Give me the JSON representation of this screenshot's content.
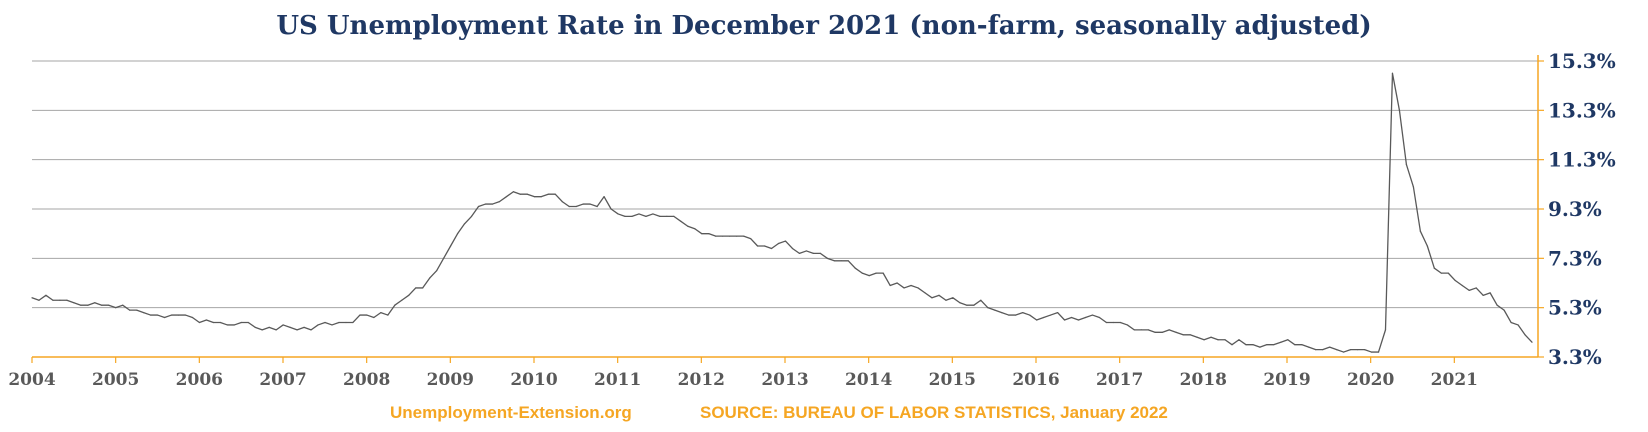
{
  "chart_data": {
    "type": "line",
    "title": "US Unemployment Rate in December 2021 (non-farm, seasonally adjusted)",
    "xlabel": "",
    "ylabel": "",
    "x_tick_labels": [
      "2004",
      "2005",
      "2006",
      "2007",
      "2008",
      "2009",
      "2010",
      "2011",
      "2012",
      "2013",
      "2014",
      "2015",
      "2016",
      "2017",
      "2018",
      "2019",
      "2020",
      "2021"
    ],
    "y_tick_labels": [
      "3.3%",
      "5.3%",
      "7.3%",
      "9.3%",
      "11.3%",
      "13.3%",
      "15.3%"
    ],
    "ylim": [
      3.3,
      15.3
    ],
    "xlim": [
      "2004-01",
      "2021-12"
    ],
    "grid": true,
    "y_axis_side": "right",
    "line_color": "#595959",
    "axis_color": "#f5a623",
    "title_color": "#1f3864",
    "footer_color": "#f5a623",
    "series": [
      {
        "x_start": "2004-01",
        "frequency": "monthly",
        "values": [
          5.7,
          5.6,
          5.8,
          5.6,
          5.6,
          5.6,
          5.5,
          5.4,
          5.4,
          5.5,
          5.4,
          5.4,
          5.3,
          5.4,
          5.2,
          5.2,
          5.1,
          5.0,
          5.0,
          4.9,
          5.0,
          5.0,
          5.0,
          4.9,
          4.7,
          4.8,
          4.7,
          4.7,
          4.6,
          4.6,
          4.7,
          4.7,
          4.5,
          4.4,
          4.5,
          4.4,
          4.6,
          4.5,
          4.4,
          4.5,
          4.4,
          4.6,
          4.7,
          4.6,
          4.7,
          4.7,
          4.7,
          5.0,
          5.0,
          4.9,
          5.1,
          5.0,
          5.4,
          5.6,
          5.8,
          6.1,
          6.1,
          6.5,
          6.8,
          7.3,
          7.8,
          8.3,
          8.7,
          9.0,
          9.4,
          9.5,
          9.5,
          9.6,
          9.8,
          10.0,
          9.9,
          9.9,
          9.8,
          9.8,
          9.9,
          9.9,
          9.6,
          9.4,
          9.4,
          9.5,
          9.5,
          9.4,
          9.8,
          9.3,
          9.1,
          9.0,
          9.0,
          9.1,
          9.0,
          9.1,
          9.0,
          9.0,
          9.0,
          8.8,
          8.6,
          8.5,
          8.3,
          8.3,
          8.2,
          8.2,
          8.2,
          8.2,
          8.2,
          8.1,
          7.8,
          7.8,
          7.7,
          7.9,
          8.0,
          7.7,
          7.5,
          7.6,
          7.5,
          7.5,
          7.3,
          7.2,
          7.2,
          7.2,
          6.9,
          6.7,
          6.6,
          6.7,
          6.7,
          6.2,
          6.3,
          6.1,
          6.2,
          6.1,
          5.9,
          5.7,
          5.8,
          5.6,
          5.7,
          5.5,
          5.4,
          5.4,
          5.6,
          5.3,
          5.2,
          5.1,
          5.0,
          5.0,
          5.1,
          5.0,
          4.8,
          4.9,
          5.0,
          5.1,
          4.8,
          4.9,
          4.8,
          4.9,
          5.0,
          4.9,
          4.7,
          4.7,
          4.7,
          4.6,
          4.4,
          4.4,
          4.4,
          4.3,
          4.3,
          4.4,
          4.3,
          4.2,
          4.2,
          4.1,
          4.0,
          4.1,
          4.0,
          4.0,
          3.8,
          4.0,
          3.8,
          3.8,
          3.7,
          3.8,
          3.8,
          3.9,
          4.0,
          3.8,
          3.8,
          3.7,
          3.6,
          3.6,
          3.7,
          3.6,
          3.5,
          3.6,
          3.6,
          3.6,
          3.5,
          3.5,
          4.4,
          14.8,
          13.3,
          11.1,
          10.2,
          8.4,
          7.8,
          6.9,
          6.7,
          6.7,
          6.4,
          6.2,
          6.0,
          6.1,
          5.8,
          5.9,
          5.4,
          5.2,
          4.7,
          4.6,
          4.2,
          3.9
        ]
      }
    ]
  },
  "footer": {
    "site": "Unemployment-Extension.org",
    "source": "SOURCE: BUREAU OF LABOR STATISTICS, January 2022"
  }
}
